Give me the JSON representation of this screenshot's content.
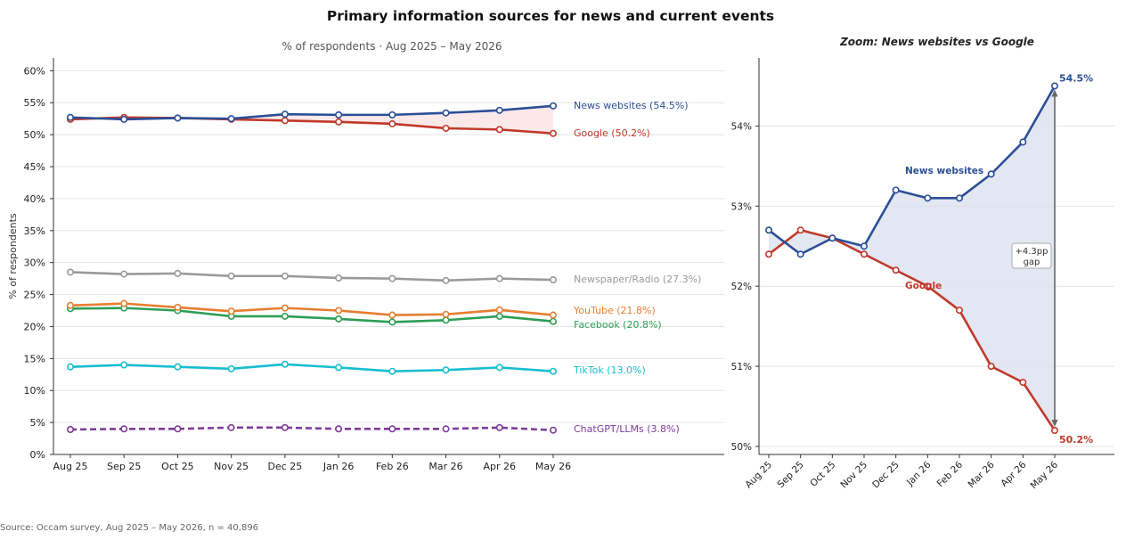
{
  "title": "Primary information sources for news and current events",
  "subtitle": "% of respondents · Aug 2025 – May 2026",
  "source": "Source: Occam survey, Aug 2025 – May 2026, n = 40,896",
  "chart_data": [
    {
      "type": "line",
      "ylabel": "% of respondents",
      "xlabel": "",
      "ylim": [
        0,
        62
      ],
      "yticks": [
        0,
        5,
        10,
        15,
        20,
        25,
        30,
        35,
        40,
        45,
        50,
        55,
        60
      ],
      "ytick_suffix": "%",
      "grid": "horizontal",
      "categories": [
        "Aug 25",
        "Sep 25",
        "Oct 25",
        "Nov 25",
        "Dec 25",
        "Jan 26",
        "Feb 26",
        "Mar 26",
        "Apr 26",
        "May 26"
      ],
      "series": [
        {
          "name": "News websites",
          "label": "News websites (54.5%)",
          "color": "#2b4f96",
          "dashed": false,
          "values": [
            52.7,
            52.4,
            52.6,
            52.5,
            53.2,
            53.1,
            53.1,
            53.4,
            53.8,
            54.5
          ]
        },
        {
          "name": "Google",
          "label": "Google (50.2%)",
          "color": "#c0392b",
          "dashed": false,
          "values": [
            52.4,
            52.7,
            52.6,
            52.4,
            52.2,
            52.0,
            51.7,
            51.0,
            50.8,
            50.2
          ]
        },
        {
          "name": "Newspaper/Radio",
          "label": "Newspaper/Radio (27.3%)",
          "color": "#999999",
          "dashed": false,
          "values": [
            28.5,
            28.2,
            28.3,
            27.9,
            27.9,
            27.6,
            27.5,
            27.2,
            27.5,
            27.3
          ]
        },
        {
          "name": "YouTube",
          "label": "YouTube (21.8%)",
          "color": "#e67e30",
          "dashed": false,
          "values": [
            23.3,
            23.6,
            23.0,
            22.4,
            22.9,
            22.5,
            21.8,
            21.9,
            22.6,
            21.8
          ]
        },
        {
          "name": "Facebook",
          "label": "Facebook (20.8%)",
          "color": "#2e9e55",
          "dashed": false,
          "values": [
            22.8,
            22.9,
            22.5,
            21.6,
            21.6,
            21.2,
            20.7,
            21.0,
            21.6,
            20.8
          ]
        },
        {
          "name": "TikTok",
          "label": "TikTok (13.0%)",
          "color": "#17becf",
          "dashed": false,
          "values": [
            13.7,
            14.0,
            13.7,
            13.4,
            14.1,
            13.6,
            13.0,
            13.2,
            13.6,
            13.0
          ]
        },
        {
          "name": "ChatGPT/LLMs",
          "label": "ChatGPT/LLMs (3.8%)",
          "color": "#7d3c98",
          "dashed": true,
          "values": [
            3.9,
            4.0,
            4.0,
            4.2,
            4.2,
            4.0,
            4.0,
            4.0,
            4.2,
            3.8
          ]
        }
      ],
      "shaded_gap_between": [
        "News websites",
        "Google"
      ],
      "shaded_gap_color": "#fbe9e9"
    },
    {
      "type": "line",
      "title": "Zoom: News websites vs Google",
      "ylim": [
        49.9,
        54.85
      ],
      "yticks": [
        50,
        51,
        52,
        53,
        54
      ],
      "ytick_suffix": "%",
      "grid": "horizontal",
      "categories": [
        "Aug 25",
        "Sep 25",
        "Oct 25",
        "Nov 25",
        "Dec 25",
        "Jan 26",
        "Feb 26",
        "Mar 26",
        "Apr 26",
        "May 26"
      ],
      "series": [
        {
          "name": "News websites",
          "color": "#2b4f96",
          "values": [
            52.7,
            52.4,
            52.6,
            52.5,
            53.2,
            53.1,
            53.1,
            53.4,
            53.8,
            54.5
          ]
        },
        {
          "name": "Google",
          "color": "#c0392b",
          "values": [
            52.4,
            52.7,
            52.6,
            52.4,
            52.2,
            52.0,
            51.7,
            51.0,
            50.8,
            50.2
          ]
        }
      ],
      "fill_between_color": "#dde3f0",
      "end_labels": [
        "54.5%",
        "50.2%"
      ],
      "gap_annotation": [
        "+4.3pp",
        "gap"
      ]
    }
  ]
}
